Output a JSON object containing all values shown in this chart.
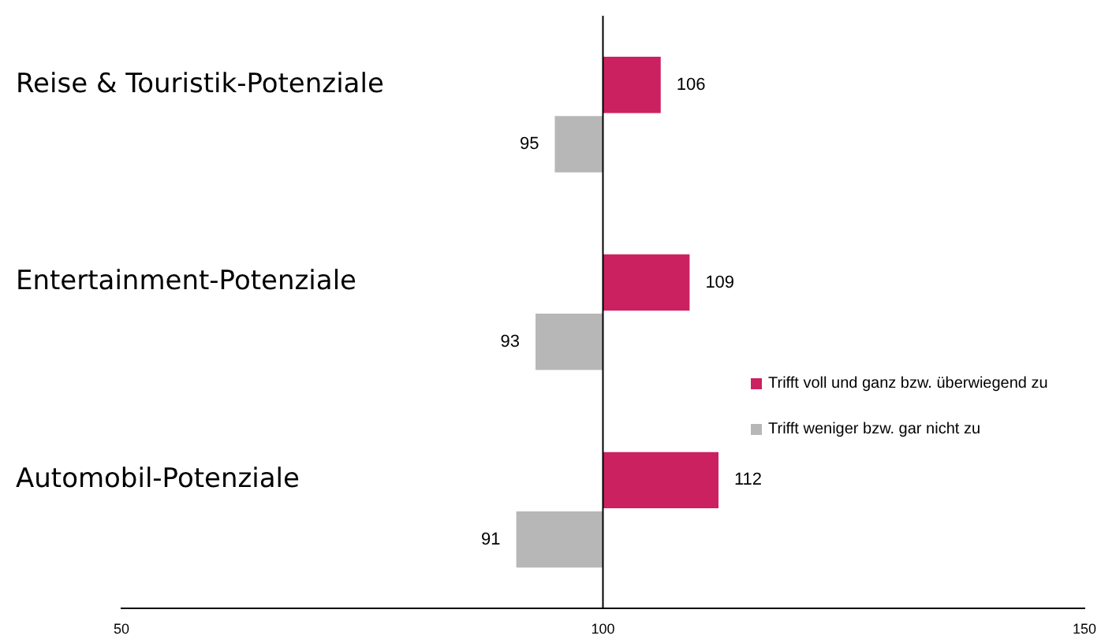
{
  "chart_data": {
    "type": "bar",
    "orientation": "horizontal",
    "categories": [
      "Reise & Touristik-Potenziale",
      "Entertainment-Potenziale",
      "Automobil-Potenziale"
    ],
    "series": [
      {
        "name": "Trifft voll und ganz bzw. überwiegend zu",
        "color": "#cc2160",
        "values": [
          6,
          9,
          12
        ],
        "base": [
          100,
          100,
          100
        ],
        "value_labels": [
          "106",
          "109",
          "112"
        ]
      },
      {
        "name": "Trifft weniger bzw. gar nicht zu",
        "color": "#b7b7b7",
        "values": [
          -5,
          -7,
          -9
        ],
        "base": [
          100,
          100,
          100
        ],
        "value_labels": [
          "95",
          "93",
          "91"
        ]
      }
    ],
    "xlim": [
      50,
      150
    ],
    "xticks": [
      50,
      100,
      150
    ],
    "grid": false,
    "legend": "right",
    "ref_lines": [
      {
        "axis": "x",
        "value": 100,
        "color": "#000000"
      }
    ]
  }
}
